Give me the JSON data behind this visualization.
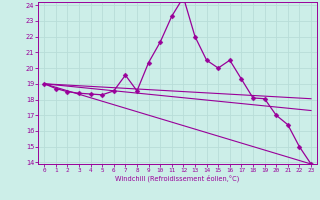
{
  "xlabel": "Windchill (Refroidissement éolien,°C)",
  "background_color": "#cceee8",
  "line_color": "#990099",
  "grid_color": "#b8ddd8",
  "xlim": [
    -0.5,
    23.5
  ],
  "ylim": [
    13.9,
    24.2
  ],
  "yticks": [
    14,
    15,
    16,
    17,
    18,
    19,
    20,
    21,
    22,
    23,
    24
  ],
  "xticks": [
    0,
    1,
    2,
    3,
    4,
    5,
    6,
    7,
    8,
    9,
    10,
    11,
    12,
    13,
    14,
    15,
    16,
    17,
    18,
    19,
    20,
    21,
    22,
    23
  ],
  "main_series": {
    "x": [
      0,
      1,
      2,
      3,
      4,
      5,
      6,
      7,
      8,
      9,
      10,
      11,
      12,
      13,
      14,
      15,
      16,
      17,
      18,
      19,
      20,
      21,
      22,
      23
    ],
    "y": [
      19.0,
      18.7,
      18.5,
      18.4,
      18.35,
      18.3,
      18.55,
      19.55,
      18.55,
      20.35,
      21.65,
      23.3,
      24.5,
      22.0,
      20.5,
      20.0,
      20.5,
      19.3,
      18.1,
      18.05,
      17.0,
      16.4,
      15.0,
      13.9
    ]
  },
  "trend_lines": [
    {
      "x": [
        0,
        23
      ],
      "y": [
        19.0,
        18.05
      ]
    },
    {
      "x": [
        0,
        23
      ],
      "y": [
        19.0,
        17.3
      ]
    },
    {
      "x": [
        0,
        23
      ],
      "y": [
        19.0,
        13.9
      ]
    }
  ]
}
